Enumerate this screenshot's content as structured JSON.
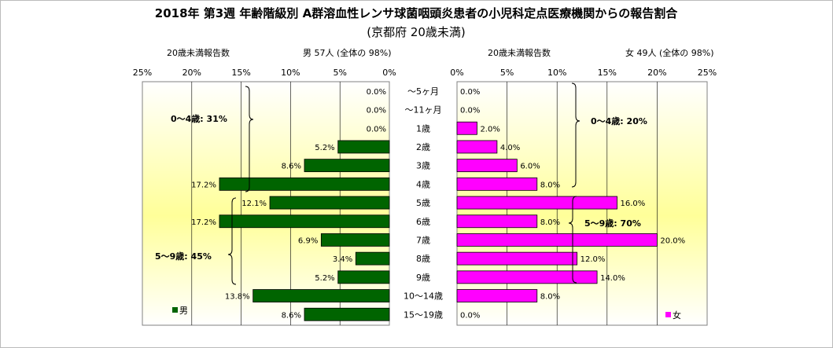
{
  "title": "2018年 第3週 年齢階級別 A群溶血性レンサ球菌咽頭炎患者の小児科定点医療機関からの報告割合",
  "subtitle": "(京都府 20歳未満)",
  "colors": {
    "male": "#006400",
    "female": "#ff00ff",
    "plot_top": "#ffffff",
    "plot_mid": "#ffff99",
    "grid": "#000000"
  },
  "chart_data": [
    {
      "type": "bar",
      "orientation": "horizontal",
      "direction": "right-to-left",
      "header_left": "20歳未満報告数",
      "header_right": "男 57人 (全体の 98%)",
      "legend": "男",
      "series": [
        {
          "name": "男",
          "values": [
            0.0,
            0.0,
            0.0,
            5.2,
            8.6,
            17.2,
            12.1,
            17.2,
            6.9,
            3.4,
            5.2,
            13.8,
            8.6
          ],
          "labels": [
            "0.0%",
            "0.0%",
            "0.0%",
            "5.2%",
            "8.6%",
            "17.2%",
            "12.1%",
            "17.2%",
            "6.9%",
            "3.4%",
            "5.2%",
            "13.8%",
            "8.6%"
          ]
        }
      ],
      "xlim": [
        0,
        25
      ],
      "tick_labels": [
        "25%",
        "20%",
        "15%",
        "10%",
        "5%",
        "0%"
      ],
      "annotations": [
        "0～4歳: 31%",
        "5～9歳: 45%"
      ]
    },
    {
      "type": "bar",
      "orientation": "horizontal",
      "direction": "left-to-right",
      "header_left": "20歳未満報告数",
      "header_right": "女 49人 (全体の 98%)",
      "legend": "女",
      "series": [
        {
          "name": "女",
          "values": [
            0.0,
            0.0,
            2.0,
            4.0,
            6.0,
            8.0,
            16.0,
            8.0,
            20.0,
            12.0,
            14.0,
            8.0,
            0.0
          ],
          "labels": [
            "0.0%",
            "0.0%",
            "2.0%",
            "4.0%",
            "6.0%",
            "8.0%",
            "16.0%",
            "8.0%",
            "20.0%",
            "12.0%",
            "14.0%",
            "8.0%",
            "0.0%"
          ]
        }
      ],
      "xlim": [
        0,
        25
      ],
      "tick_labels": [
        "0%",
        "5%",
        "10%",
        "15%",
        "20%",
        "25%"
      ],
      "annotations": [
        "0～4歳: 20%",
        "5～9歳: 70%"
      ]
    }
  ],
  "categories": [
    "～5ヶ月",
    "～11ヶ月",
    "1歳",
    "2歳",
    "3歳",
    "4歳",
    "5歳",
    "6歳",
    "7歳",
    "8歳",
    "9歳",
    "10～14歳",
    "15～19歳"
  ]
}
